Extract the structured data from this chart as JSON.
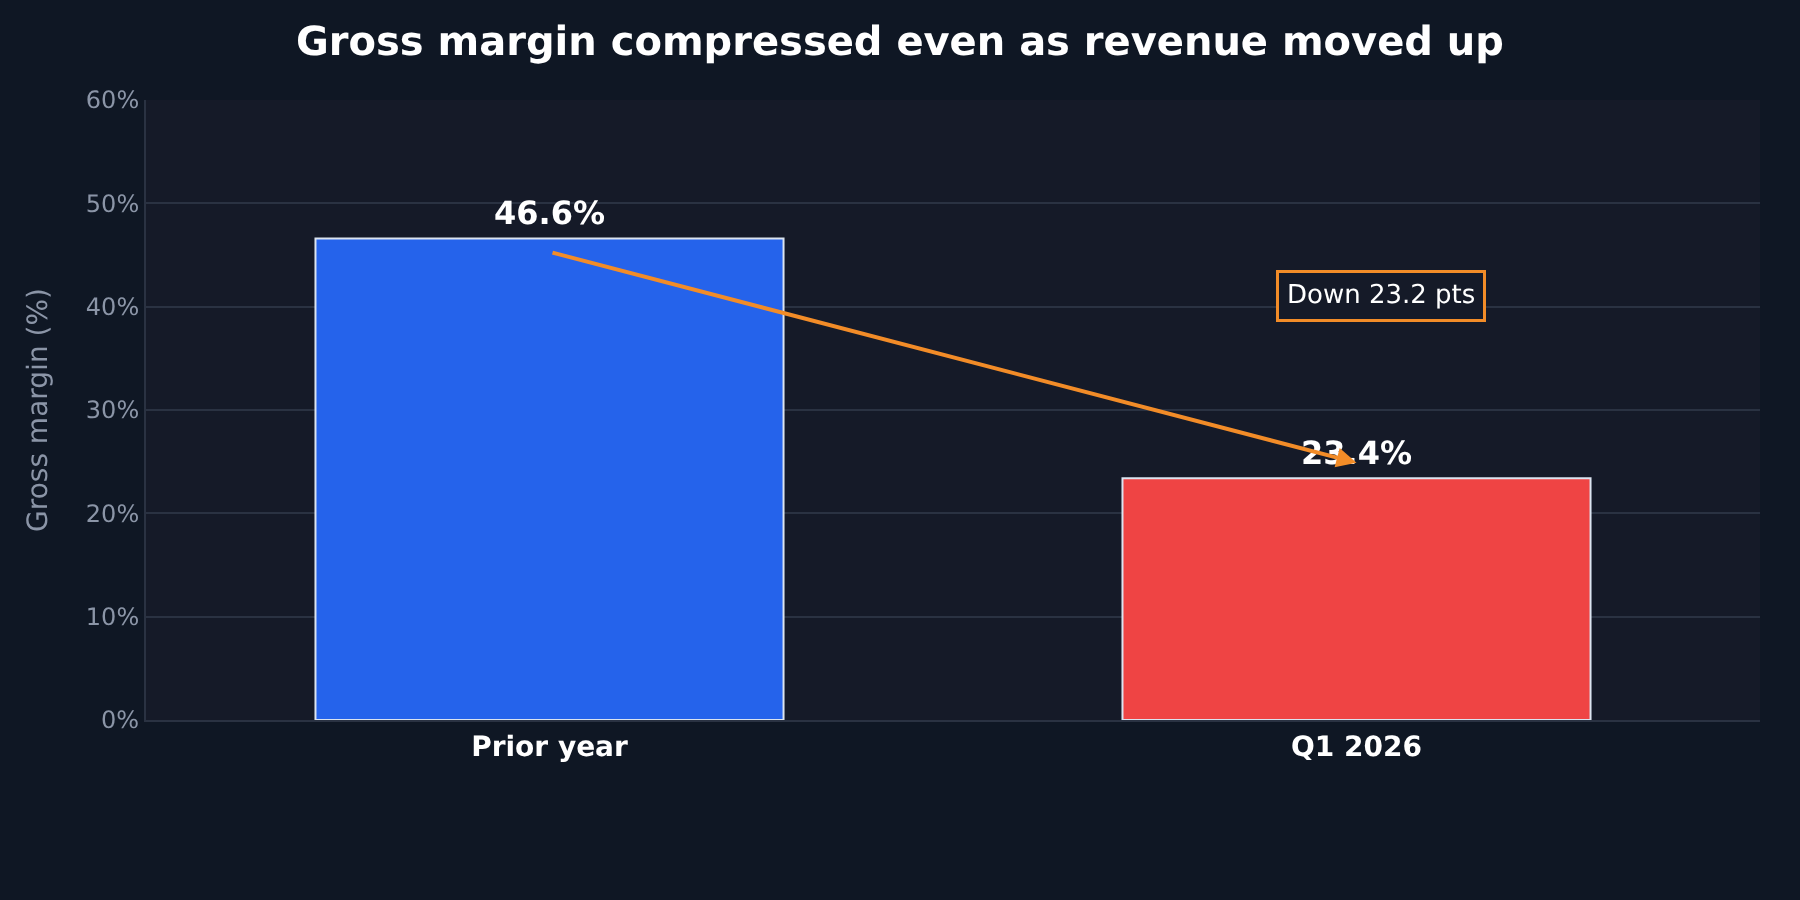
{
  "chart_data": {
    "type": "bar",
    "title": "Gross margin compressed even as revenue moved up",
    "categories": [
      "Prior year",
      "Q1 2026"
    ],
    "values": [
      46.6,
      23.4
    ],
    "colors": [
      "#2563eb",
      "#ef4444"
    ],
    "value_labels": [
      "46.6%",
      "23.4%"
    ],
    "ylabel": "Gross margin (%)",
    "ylim": [
      0,
      60
    ],
    "yticks": [
      {
        "value": 0,
        "label": "0%"
      },
      {
        "value": 10,
        "label": "10%"
      },
      {
        "value": 20,
        "label": "20%"
      },
      {
        "value": 30,
        "label": "30%"
      },
      {
        "value": 40,
        "label": "40%"
      },
      {
        "value": 50,
        "label": "50%"
      },
      {
        "value": 60,
        "label": "60%"
      }
    ],
    "grid": "y",
    "annotations": [
      "Down 23.2 pts"
    ]
  }
}
